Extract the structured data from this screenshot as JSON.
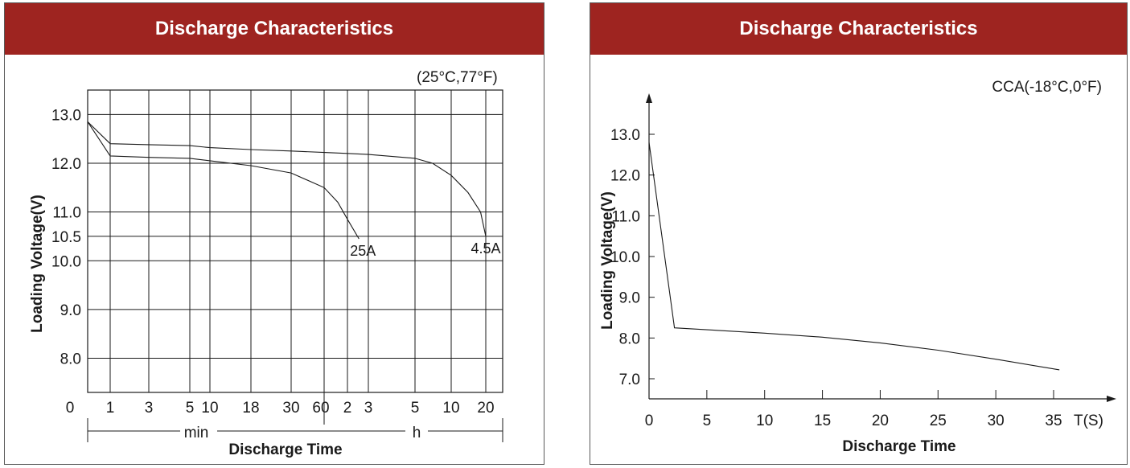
{
  "colors": {
    "banner": "#9e2420",
    "ink": "#1a1a1a"
  },
  "chart_data": [
    {
      "type": "line",
      "title": "Discharge Characteristics",
      "condition": "(25°C,77°F)",
      "ylabel": "Loading Voltage(V)",
      "xlabel": "Discharge Time",
      "ylim": [
        7.3,
        13.5
      ],
      "y_ticks": [
        "13.0",
        "12.0",
        "11.0",
        "10.5",
        "10.0",
        "9.0",
        "8.0"
      ],
      "y_tick_values": [
        13.0,
        12.0,
        11.0,
        10.5,
        10.0,
        9.0,
        8.0
      ],
      "origin_label": "0",
      "x_ticks": [
        "1",
        "3",
        "5",
        "10",
        "18",
        "30",
        "60",
        "2",
        "3",
        "5",
        "10",
        "20"
      ],
      "unit_min": "min",
      "unit_h": "h",
      "grid": true,
      "series": [
        {
          "name": "25A",
          "points": [
            [
              0,
              12.85
            ],
            [
              1,
              12.15
            ],
            [
              3,
              12.12
            ],
            [
              5,
              12.1
            ],
            [
              10,
              12.05
            ],
            [
              18,
              11.95
            ],
            [
              30,
              11.8
            ],
            [
              60,
              11.5
            ],
            [
              90,
              11.2
            ],
            [
              120,
              10.85
            ],
            [
              150,
              10.45
            ]
          ]
        },
        {
          "name": "4.5A",
          "points": [
            [
              0,
              12.85
            ],
            [
              1,
              12.4
            ],
            [
              3,
              12.38
            ],
            [
              5,
              12.36
            ],
            [
              10,
              12.32
            ],
            [
              18,
              12.28
            ],
            [
              30,
              12.25
            ],
            [
              60,
              12.22
            ],
            [
              120,
              12.2
            ],
            [
              180,
              12.18
            ],
            [
              300,
              12.1
            ],
            [
              420,
              12.0
            ],
            [
              600,
              11.75
            ],
            [
              840,
              11.4
            ],
            [
              1080,
              11.0
            ],
            [
              1200,
              10.5
            ]
          ]
        }
      ]
    },
    {
      "type": "line",
      "title": "Discharge Characteristics",
      "condition": "CCA(-18°C,0°F)",
      "ylabel": "Loading Voltage(V)",
      "xlabel": "Discharge Time",
      "xlim": [
        0,
        40
      ],
      "ylim": [
        6.5,
        14.0
      ],
      "y_ticks": [
        "13.0",
        "12.0",
        "11.0",
        "10.0",
        "9.0",
        "8.0",
        "7.0"
      ],
      "y_tick_values": [
        13.0,
        12.0,
        11.0,
        10.0,
        9.0,
        8.0,
        7.0
      ],
      "x_ticks": [
        "0",
        "5",
        "10",
        "15",
        "20",
        "25",
        "30",
        "35"
      ],
      "x_tick_values": [
        0,
        5,
        10,
        15,
        20,
        25,
        30,
        35
      ],
      "x_unit": "T(S)",
      "grid": false,
      "series": [
        {
          "points": [
            [
              0,
              12.8
            ],
            [
              2.2,
              8.25
            ],
            [
              10,
              8.12
            ],
            [
              15,
              8.02
            ],
            [
              20,
              7.88
            ],
            [
              25,
              7.7
            ],
            [
              30,
              7.48
            ],
            [
              35.5,
              7.22
            ]
          ]
        }
      ]
    }
  ]
}
